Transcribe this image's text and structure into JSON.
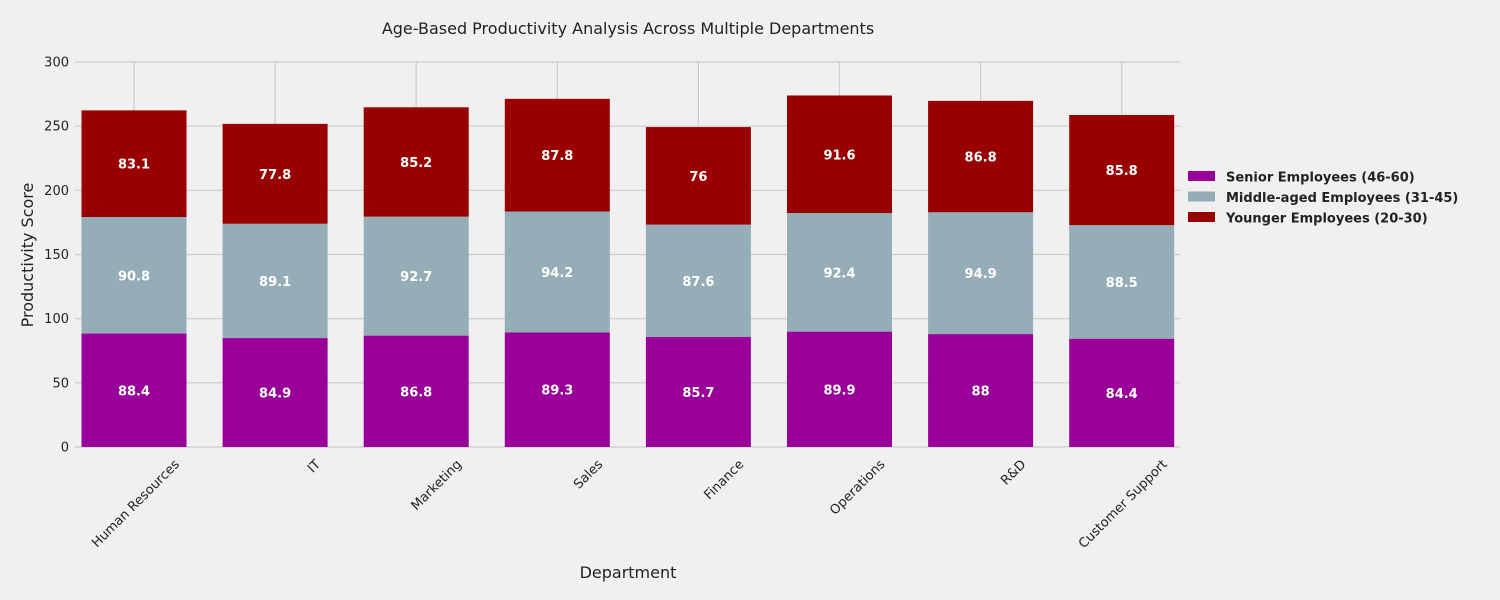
{
  "chart_data": {
    "type": "bar",
    "stacked": true,
    "title": "Age-Based Productivity Analysis Across Multiple Departments",
    "xlabel": "Department",
    "ylabel": "Productivity Score",
    "ylim": [
      0,
      300
    ],
    "yticks": [
      0,
      50,
      100,
      150,
      200,
      250,
      300
    ],
    "grid": true,
    "legend_position": "right",
    "categories": [
      "Human Resources",
      "IT",
      "Marketing",
      "Sales",
      "Finance",
      "Operations",
      "R&D",
      "Customer Support"
    ],
    "series": [
      {
        "name": "Senior Employees (46-60)",
        "color": "#990099",
        "values": [
          88.4,
          84.9,
          86.8,
          89.3,
          85.7,
          89.9,
          88,
          84.4
        ],
        "labels": [
          "88.4",
          "84.9",
          "86.8",
          "89.3",
          "85.7",
          "89.9",
          "88",
          "84.4"
        ]
      },
      {
        "name": "Middle-aged Employees (31-45)",
        "color": "#95adb6",
        "values": [
          90.8,
          89.1,
          92.7,
          94.2,
          87.6,
          92.4,
          94.9,
          88.5
        ],
        "labels": [
          "90.8",
          "89.1",
          "92.7",
          "94.2",
          "87.6",
          "92.4",
          "94.9",
          "88.5"
        ]
      },
      {
        "name": "Younger Employees (20-30)",
        "color": "#990000",
        "values": [
          83.1,
          77.8,
          85.2,
          87.8,
          76,
          91.6,
          86.8,
          85.8
        ],
        "labels": [
          "83.1",
          "77.8",
          "85.2",
          "87.8",
          "76",
          "91.6",
          "86.8",
          "85.8"
        ]
      }
    ]
  }
}
